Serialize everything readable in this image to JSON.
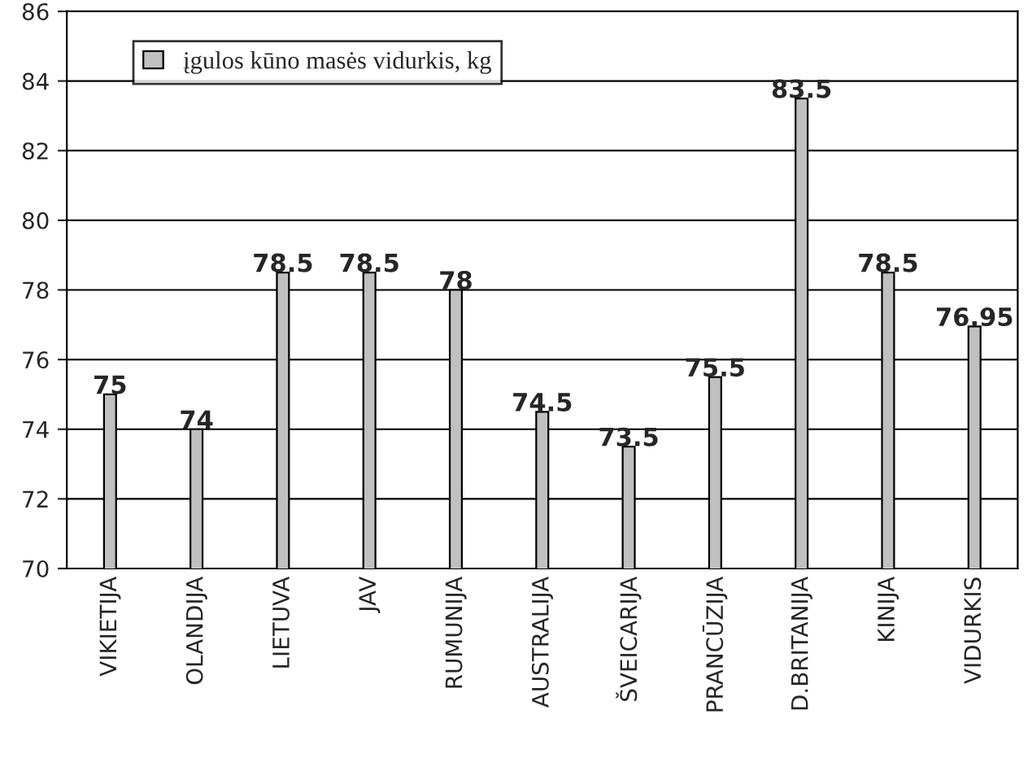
{
  "chart_data": {
    "type": "bar",
    "categories": [
      "VIKIETIJA",
      "OLANDIJA",
      "LIETUVA",
      "JAV",
      "RUMUNIJA",
      "AUSTRALIJA",
      "ŠVEICARIJA",
      "PRANCŪZIJA",
      "D.BRITANIJA",
      "KINIJA",
      "VIDURKIS"
    ],
    "series": [
      {
        "name": "įgulos kūno masės vidurkis, kg",
        "color": "#c0c0c0",
        "values": [
          75,
          74,
          78.5,
          78.5,
          78,
          74.5,
          73.5,
          75.5,
          83.5,
          78.5,
          76.95
        ]
      }
    ],
    "ylim": [
      70,
      86
    ],
    "yticks": [
      70,
      72,
      74,
      76,
      78,
      80,
      82,
      84,
      86
    ],
    "grid": "y",
    "legend": "top left",
    "data_labels": true
  }
}
